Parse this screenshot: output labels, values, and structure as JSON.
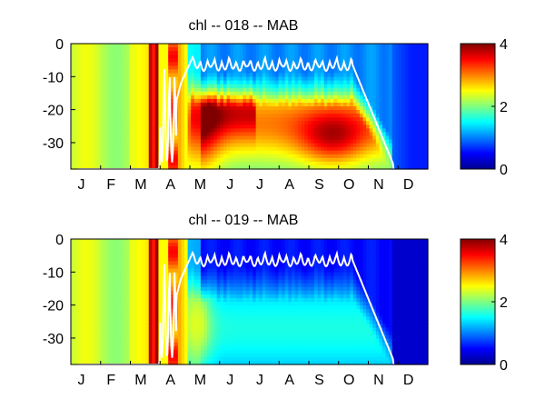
{
  "chart_data": [
    {
      "type": "heatmap",
      "title": "chl -- 018 -- MAB",
      "xlabel": "",
      "ylabel": "",
      "x_ticklabels": [
        "J",
        "F",
        "M",
        "A",
        "M",
        "J",
        "J",
        "A",
        "S",
        "O",
        "N",
        "D"
      ],
      "y_ticks": [
        0,
        -10,
        -20,
        -30
      ],
      "ylim": [
        -38,
        0
      ],
      "colorbar": {
        "min": 0,
        "max": 4,
        "ticks": [
          0,
          2,
          4
        ],
        "colormap": "jet"
      },
      "overlay_line": "white",
      "data_extent_month": 10.85
    },
    {
      "type": "heatmap",
      "title": "chl -- 019 -- MAB",
      "xlabel": "",
      "ylabel": "",
      "x_ticklabels": [
        "J",
        "F",
        "M",
        "A",
        "M",
        "J",
        "J",
        "A",
        "S",
        "O",
        "N",
        "D"
      ],
      "y_ticks": [
        0,
        -10,
        -20,
        -30
      ],
      "ylim": [
        -38,
        0
      ],
      "colorbar": {
        "min": 0,
        "max": 4,
        "ticks": [
          0,
          2,
          4
        ],
        "colormap": "jet"
      },
      "overlay_line": "white",
      "data_extent_month": 10.85
    }
  ]
}
